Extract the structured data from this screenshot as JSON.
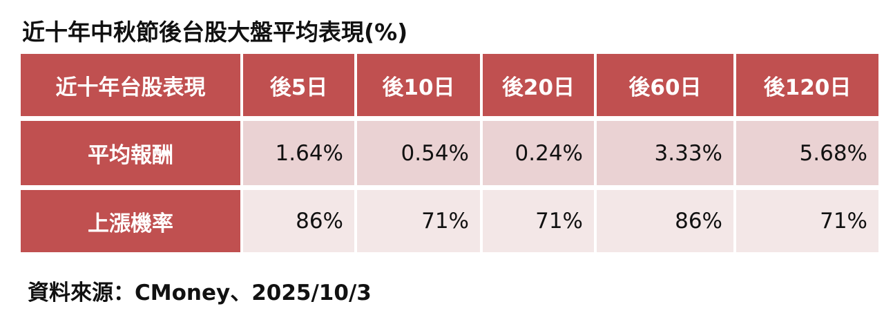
{
  "title": "近十年中秋節後台股大盤平均表現(%)",
  "table": {
    "header": [
      "近十年台股表現",
      "後5日",
      "後10日",
      "後20日",
      "後60日",
      "後120日"
    ],
    "rows": [
      [
        "平均報酬",
        "1.64%",
        "0.54%",
        "0.24%",
        "3.33%",
        "5.68%"
      ],
      [
        "上漲機率",
        "86%",
        "71%",
        "71%",
        "86%",
        "71%"
      ]
    ]
  },
  "source": "資料來源：CMoney、2025/10/3"
}
